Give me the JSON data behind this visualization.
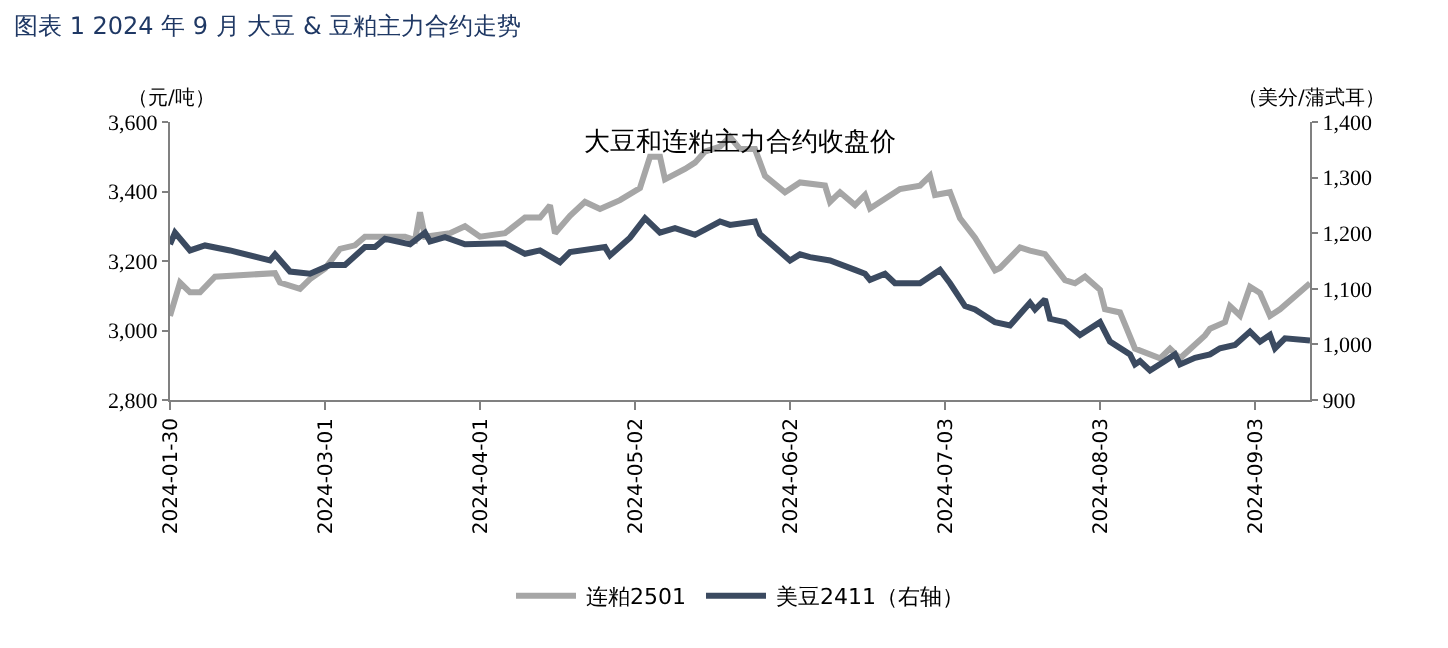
{
  "chart_data": {
    "type": "line",
    "title": "图表 1 2024 年 9 月 大豆 & 豆粕主力合约走势",
    "subtitle": "大豆和连粕主力合约收盘价",
    "ylabel": "（元/吨）",
    "y2label": "（美分/蒲式耳）",
    "xlim": [
      "2024-01-30",
      "2024-09-14"
    ],
    "xticks": [
      "2024-01-30",
      "2024-03-01",
      "2024-04-01",
      "2024-05-02",
      "2024-06-02",
      "2024-07-03",
      "2024-08-03",
      "2024-09-03"
    ],
    "ylim": [
      2800,
      3600
    ],
    "yticks": [
      {
        "value": 2800,
        "label": "2,800"
      },
      {
        "value": 3000,
        "label": "3,000"
      },
      {
        "value": 3200,
        "label": "3,200"
      },
      {
        "value": 3400,
        "label": "3,400"
      },
      {
        "value": 3600,
        "label": "3,600"
      }
    ],
    "y2lim": [
      900,
      1400
    ],
    "y2ticks": [
      900,
      {
        "value": 1000,
        "label": "1,000"
      },
      {
        "value": 1100,
        "label": "1,100"
      },
      {
        "value": 1200,
        "label": "1,200"
      },
      {
        "value": 1300,
        "label": "1,300"
      },
      {
        "value": 1400,
        "label": "1,400"
      }
    ],
    "legend": "bottom",
    "marker": "none",
    "line_style": "solid",
    "series": [
      {
        "name": "连粕2501",
        "color": "#a6a6a6",
        "x": [
          "2024-01-30",
          "2024-02-01",
          "2024-02-03",
          "2024-02-05",
          "2024-02-08",
          "2024-02-20",
          "2024-02-21",
          "2024-02-25",
          "2024-02-27",
          "2024-03-01",
          "2024-03-04",
          "2024-03-07",
          "2024-03-09",
          "2024-03-17",
          "2024-03-19",
          "2024-03-20",
          "2024-03-21",
          "2024-03-26",
          "2024-03-29",
          "2024-04-01",
          "2024-04-06",
          "2024-04-10",
          "2024-04-13",
          "2024-04-15",
          "2024-04-16",
          "2024-04-19",
          "2024-04-22",
          "2024-04-25",
          "2024-04-29",
          "2024-05-03",
          "2024-05-05",
          "2024-05-07",
          "2024-05-08",
          "2024-05-12",
          "2024-05-14",
          "2024-05-16",
          "2024-05-19",
          "2024-05-21",
          "2024-05-23",
          "2024-05-26",
          "2024-05-28",
          "2024-06-01",
          "2024-06-04",
          "2024-06-09",
          "2024-06-10",
          "2024-06-12",
          "2024-06-15",
          "2024-06-17",
          "2024-06-18",
          "2024-06-24",
          "2024-06-28",
          "2024-06-30",
          "2024-07-01",
          "2024-07-04",
          "2024-07-06",
          "2024-07-09",
          "2024-07-13",
          "2024-07-14",
          "2024-07-18",
          "2024-07-20",
          "2024-07-23",
          "2024-07-27",
          "2024-07-29",
          "2024-07-31",
          "2024-08-03",
          "2024-08-04",
          "2024-08-07",
          "2024-08-10",
          "2024-08-15",
          "2024-08-17",
          "2024-08-19",
          "2024-08-24",
          "2024-08-25",
          "2024-08-28",
          "2024-08-29",
          "2024-08-31",
          "2024-09-02",
          "2024-09-04",
          "2024-09-06",
          "2024-09-08",
          "2024-09-14"
        ],
        "values": [
          3042,
          3138,
          3110,
          3110,
          3155,
          3165,
          3138,
          3120,
          3148,
          3178,
          3235,
          3245,
          3270,
          3270,
          3260,
          3340,
          3270,
          3280,
          3300,
          3270,
          3280,
          3325,
          3325,
          3360,
          3280,
          3330,
          3370,
          3350,
          3375,
          3410,
          3500,
          3500,
          3435,
          3465,
          3483,
          3515,
          3529,
          3557,
          3522,
          3522,
          3445,
          3398,
          3426,
          3417,
          3370,
          3398,
          3361,
          3390,
          3351,
          3407,
          3417,
          3445,
          3390,
          3398,
          3323,
          3267,
          3173,
          3180,
          3239,
          3230,
          3220,
          3145,
          3136,
          3155,
          3117,
          3061,
          3052,
          2948,
          2920,
          2948,
          2920,
          2986,
          3005,
          3024,
          3070,
          3043,
          3126,
          3108,
          3042,
          3061,
          3136
        ]
      },
      {
        "name": "美豆2411（右轴）",
        "color": "#3b4a60",
        "axis": "y2",
        "x": [
          "2024-01-30",
          "2024-01-31",
          "2024-02-03",
          "2024-02-06",
          "2024-02-11",
          "2024-02-19",
          "2024-02-20",
          "2024-02-23",
          "2024-02-27",
          "2024-03-02",
          "2024-03-05",
          "2024-03-09",
          "2024-03-11",
          "2024-03-13",
          "2024-03-18",
          "2024-03-21",
          "2024-03-22",
          "2024-03-25",
          "2024-03-29",
          "2024-04-06",
          "2024-04-10",
          "2024-04-13",
          "2024-04-17",
          "2024-04-19",
          "2024-04-26",
          "2024-04-27",
          "2024-05-01",
          "2024-05-04",
          "2024-05-07",
          "2024-05-10",
          "2024-05-14",
          "2024-05-19",
          "2024-05-21",
          "2024-05-26",
          "2024-05-27",
          "2024-06-02",
          "2024-06-04",
          "2024-06-06",
          "2024-06-10",
          "2024-06-15",
          "2024-06-17",
          "2024-06-18",
          "2024-06-21",
          "2024-06-23",
          "2024-06-28",
          "2024-07-02",
          "2024-07-04",
          "2024-07-07",
          "2024-07-09",
          "2024-07-13",
          "2024-07-16",
          "2024-07-20",
          "2024-07-21",
          "2024-07-23",
          "2024-07-24",
          "2024-07-27",
          "2024-07-30",
          "2024-08-03",
          "2024-08-05",
          "2024-08-09",
          "2024-08-10",
          "2024-08-11",
          "2024-08-13",
          "2024-08-16",
          "2024-08-18",
          "2024-08-19",
          "2024-08-22",
          "2024-08-25",
          "2024-08-27",
          "2024-08-30",
          "2024-09-02",
          "2024-09-04",
          "2024-09-06",
          "2024-09-07",
          "2024-09-09",
          "2024-09-14"
        ],
        "values": [
          1180,
          1201,
          1169,
          1178,
          1169,
          1151,
          1162,
          1131,
          1127,
          1143,
          1143,
          1175,
          1175,
          1190,
          1180,
          1201,
          1185,
          1193,
          1180,
          1182,
          1163,
          1169,
          1148,
          1166,
          1175,
          1160,
          1192,
          1227,
          1201,
          1209,
          1197,
          1221,
          1215,
          1221,
          1198,
          1151,
          1162,
          1157,
          1151,
          1134,
          1127,
          1116,
          1127,
          1110,
          1110,
          1134,
          1110,
          1069,
          1063,
          1040,
          1034,
          1075,
          1063,
          1081,
          1046,
          1040,
          1017,
          1040,
          1005,
          982,
          964,
          970,
          953,
          970,
          982,
          964,
          976,
          982,
          993,
          999,
          1023,
          1005,
          1017,
          993,
          1011,
          1007
        ]
      }
    ]
  }
}
